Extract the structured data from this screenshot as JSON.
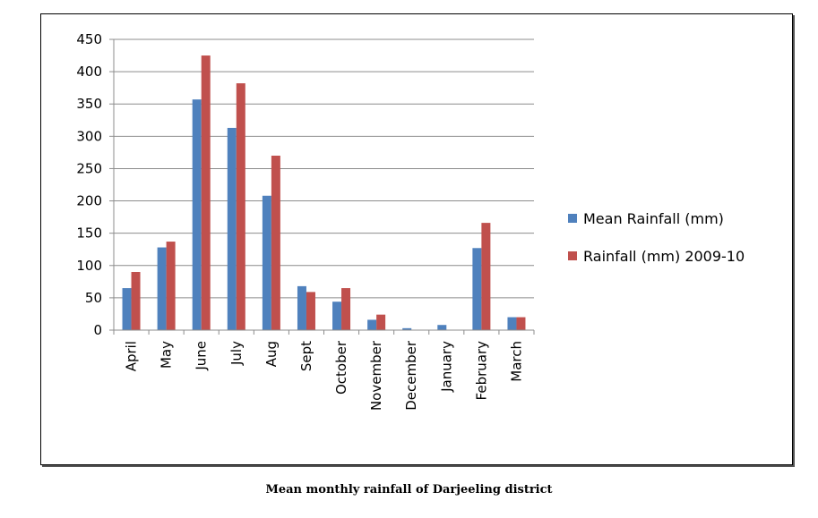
{
  "caption": "Mean monthly rainfall of Darjeeling district",
  "chart_data": {
    "type": "bar",
    "categories": [
      "April",
      "May",
      "June",
      "July",
      "Aug",
      "Sept",
      "October",
      "November",
      "December",
      "January",
      "February",
      "March"
    ],
    "series": [
      {
        "name": "Mean Rainfall (mm)",
        "color": "#4F81BD",
        "values": [
          65,
          128,
          357,
          313,
          208,
          68,
          44,
          16,
          3,
          8,
          127,
          20
        ]
      },
      {
        "name": "Rainfall (mm) 2009-10",
        "color": "#C0504D",
        "values": [
          90,
          137,
          425,
          382,
          270,
          59,
          65,
          24,
          0,
          0,
          166,
          20
        ]
      }
    ],
    "ylim": [
      0,
      450
    ],
    "yticks": [
      0,
      50,
      100,
      150,
      200,
      250,
      300,
      350,
      400,
      450
    ],
    "grid": true,
    "legend_position": "right",
    "title": "",
    "xlabel": "",
    "ylabel": ""
  }
}
